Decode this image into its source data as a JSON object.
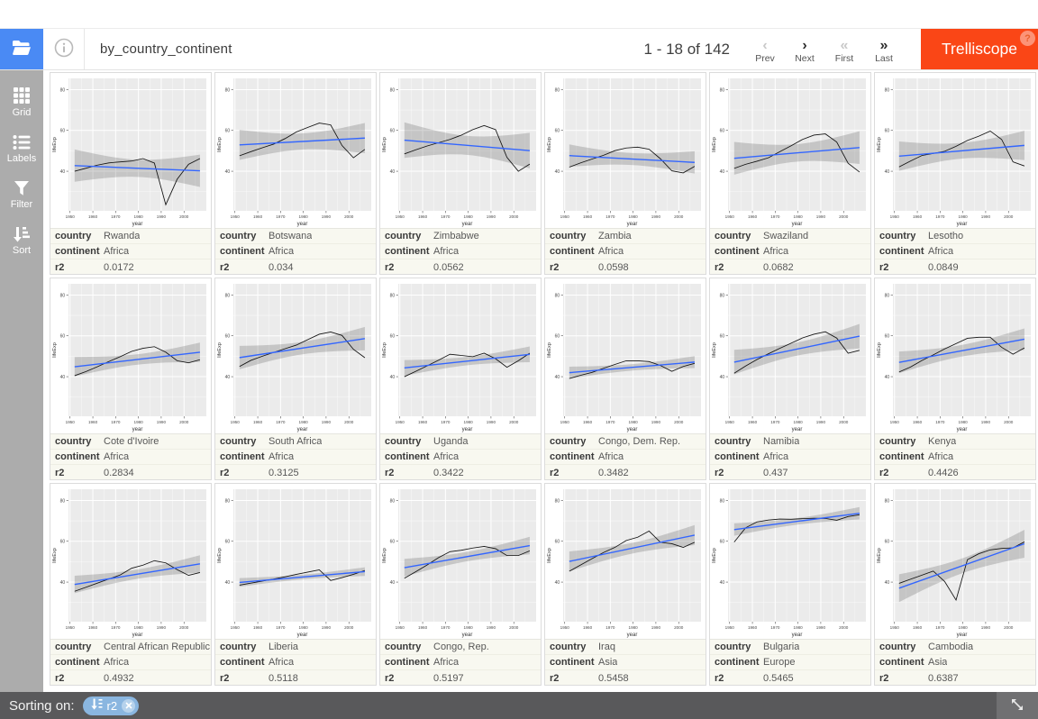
{
  "header": {
    "title": "by_country_continent",
    "pagination": "1 - 18 of 142",
    "nav": [
      {
        "label": "Prev",
        "glyph": "‹",
        "enabled": false
      },
      {
        "label": "Next",
        "glyph": "›",
        "enabled": true
      },
      {
        "label": "First",
        "glyph": "«",
        "enabled": false
      },
      {
        "label": "Last",
        "glyph": "»",
        "enabled": true
      }
    ],
    "app_button": "Trelliscope",
    "help_badge": "?"
  },
  "sidebar": {
    "items": [
      {
        "label": "Grid",
        "icon": "grid-icon"
      },
      {
        "label": "Labels",
        "icon": "labels-icon"
      },
      {
        "label": "Filter",
        "icon": "filter-icon"
      },
      {
        "label": "Sort",
        "icon": "sort-icon"
      }
    ]
  },
  "footer": {
    "sorting_label": "Sorting on:",
    "sort_chip": {
      "field": "r2",
      "direction": "ascending"
    }
  },
  "panel_label_keys": [
    "country",
    "continent",
    "r2"
  ],
  "colors": {
    "accent_blue": "#4a8af4",
    "brand_orange": "#fa4616",
    "trend_line_blue": "#3366ff",
    "plot_background": "#ebebeb",
    "ribbon": "rgba(0,0,0,0.16)",
    "sidebar_gray": "#acacac",
    "footer_gray": "#59595b",
    "chip_blue": "#8ab6e0"
  },
  "chart_data": {
    "type": "line",
    "xlabel": "year",
    "ylabel": "lifeExp",
    "x": [
      1952,
      1957,
      1962,
      1967,
      1972,
      1977,
      1982,
      1987,
      1992,
      1997,
      2002,
      2007
    ],
    "x_ticks": [
      1950,
      1960,
      1970,
      1980,
      1990,
      2000
    ],
    "y_ticks": [
      40,
      60,
      80
    ],
    "x_domain": [
      1949.3,
      2009.8
    ],
    "y_domain": [
      20.6,
      85.5
    ],
    "grid": true,
    "note": "each panel: black lifeExp series + blue linear fit with gray confidence ribbon"
  },
  "panels": [
    {
      "country": "Rwanda",
      "continent": "Africa",
      "r2": "0.0172",
      "lifeExp": [
        40.0,
        41.5,
        43.0,
        44.1,
        44.6,
        45.0,
        46.2,
        44.0,
        23.6,
        36.1,
        43.4,
        46.2
      ]
    },
    {
      "country": "Botswana",
      "continent": "Africa",
      "r2": "0.034",
      "lifeExp": [
        47.6,
        49.6,
        51.5,
        53.3,
        56.0,
        59.3,
        61.5,
        63.6,
        62.7,
        52.6,
        46.6,
        50.7
      ]
    },
    {
      "country": "Zimbabwe",
      "continent": "Africa",
      "r2": "0.0562",
      "lifeExp": [
        48.5,
        50.5,
        52.4,
        54.0,
        55.6,
        57.7,
        60.4,
        62.4,
        60.4,
        46.8,
        40.0,
        43.5
      ]
    },
    {
      "country": "Zambia",
      "continent": "Africa",
      "r2": "0.0598",
      "lifeExp": [
        42.0,
        44.1,
        46.0,
        47.8,
        50.1,
        51.4,
        51.8,
        50.8,
        46.1,
        40.2,
        39.2,
        42.4
      ]
    },
    {
      "country": "Swaziland",
      "continent": "Africa",
      "r2": "0.0682",
      "lifeExp": [
        41.4,
        43.4,
        44.9,
        46.6,
        49.6,
        52.5,
        55.6,
        57.7,
        58.3,
        54.3,
        43.9,
        39.6
      ]
    },
    {
      "country": "Lesotho",
      "continent": "Africa",
      "r2": "0.0849",
      "lifeExp": [
        42.1,
        45.0,
        47.7,
        48.7,
        49.8,
        52.2,
        55.1,
        57.2,
        59.7,
        55.6,
        44.6,
        42.6
      ]
    },
    {
      "country": "Cote d'Ivoire",
      "continent": "Africa",
      "r2": "0.2834",
      "lifeExp": [
        40.5,
        42.5,
        44.9,
        47.4,
        49.8,
        52.4,
        53.9,
        54.7,
        52.0,
        47.8,
        46.8,
        48.3
      ]
    },
    {
      "country": "South Africa",
      "continent": "Africa",
      "r2": "0.3125",
      "lifeExp": [
        45.0,
        48.0,
        50.0,
        51.9,
        53.7,
        55.5,
        58.2,
        60.8,
        61.9,
        60.2,
        53.4,
        49.3
      ]
    },
    {
      "country": "Uganda",
      "continent": "Africa",
      "r2": "0.3422",
      "lifeExp": [
        40.0,
        42.6,
        45.3,
        48.1,
        51.0,
        50.4,
        49.8,
        51.5,
        48.8,
        44.6,
        47.8,
        51.5
      ]
    },
    {
      "country": "Congo, Dem. Rep.",
      "continent": "Africa",
      "r2": "0.3482",
      "lifeExp": [
        39.1,
        40.7,
        42.1,
        44.1,
        46.0,
        47.8,
        47.8,
        47.4,
        45.5,
        42.6,
        45.0,
        46.5
      ]
    },
    {
      "country": "Namibia",
      "continent": "Africa",
      "r2": "0.437",
      "lifeExp": [
        41.7,
        45.2,
        48.4,
        51.2,
        53.9,
        56.4,
        59.0,
        60.8,
        62.0,
        58.9,
        51.5,
        52.9
      ]
    },
    {
      "country": "Kenya",
      "continent": "Africa",
      "r2": "0.4426",
      "lifeExp": [
        42.3,
        44.7,
        47.9,
        50.7,
        53.6,
        56.2,
        58.8,
        59.3,
        59.3,
        54.4,
        51.0,
        54.1
      ]
    },
    {
      "country": "Central African Republic",
      "continent": "Africa",
      "r2": "0.4932",
      "lifeExp": [
        35.5,
        37.5,
        39.5,
        41.5,
        43.5,
        46.8,
        48.3,
        50.5,
        49.4,
        46.1,
        43.3,
        44.7
      ]
    },
    {
      "country": "Liberia",
      "continent": "Africa",
      "r2": "0.5118",
      "lifeExp": [
        38.5,
        39.5,
        40.5,
        41.5,
        42.6,
        43.8,
        44.9,
        46.0,
        40.8,
        42.2,
        43.8,
        45.7
      ]
    },
    {
      "country": "Congo, Rep.",
      "continent": "Africa",
      "r2": "0.5197",
      "lifeExp": [
        41.9,
        45.1,
        48.4,
        52.0,
        54.9,
        55.6,
        56.7,
        57.5,
        56.4,
        53.0,
        53.0,
        55.3
      ]
    },
    {
      "country": "Iraq",
      "continent": "Asia",
      "r2": "0.5458",
      "lifeExp": [
        45.3,
        48.4,
        51.5,
        54.5,
        57.0,
        60.4,
        62.0,
        65.0,
        59.5,
        58.8,
        57.0,
        59.5
      ]
    },
    {
      "country": "Bulgaria",
      "continent": "Europe",
      "r2": "0.5465",
      "lifeExp": [
        59.6,
        66.6,
        69.5,
        70.4,
        70.9,
        70.8,
        71.1,
        71.3,
        71.2,
        70.3,
        72.1,
        73.0
      ]
    },
    {
      "country": "Cambodia",
      "continent": "Asia",
      "r2": "0.6387",
      "lifeExp": [
        39.4,
        41.4,
        43.4,
        45.4,
        40.3,
        31.2,
        51.0,
        53.9,
        55.8,
        56.5,
        56.8,
        59.7
      ]
    }
  ]
}
